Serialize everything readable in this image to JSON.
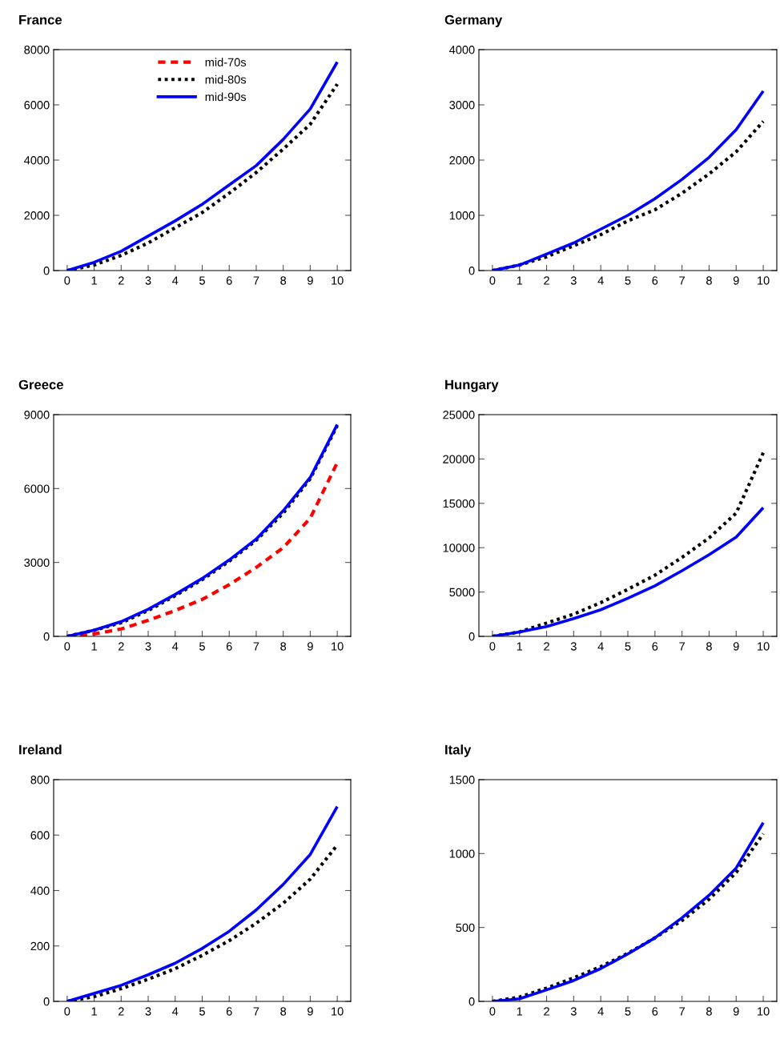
{
  "chart_data": [
    {
      "type": "line",
      "title": "France",
      "x": [
        0,
        1,
        2,
        3,
        4,
        5,
        6,
        7,
        8,
        9,
        10
      ],
      "xlim": [
        -0.5,
        10.5
      ],
      "xticks": [
        0,
        1,
        2,
        3,
        4,
        5,
        6,
        7,
        8,
        9,
        10
      ],
      "ylim": [
        0,
        8000
      ],
      "yticks": [
        0,
        2000,
        4000,
        6000,
        8000
      ],
      "grid": false,
      "legend": "top",
      "series": [
        {
          "name": "mid-70s",
          "color": "#ff0000",
          "line_style": "dashed",
          "values": [
            null,
            null,
            null,
            null,
            null,
            null,
            null,
            null,
            null,
            null,
            null
          ]
        },
        {
          "name": "mid-80s",
          "color": "#000000",
          "line_style": "dotted",
          "values": [
            0,
            200,
            550,
            1000,
            1550,
            2100,
            2800,
            3550,
            4400,
            5300,
            6750
          ]
        },
        {
          "name": "mid-90s",
          "color": "#0000ff",
          "line_style": "solid",
          "values": [
            0,
            300,
            700,
            1250,
            1800,
            2400,
            3100,
            3800,
            4750,
            5850,
            7550
          ]
        }
      ]
    },
    {
      "type": "line",
      "title": "Germany",
      "x": [
        0,
        1,
        2,
        3,
        4,
        5,
        6,
        7,
        8,
        9,
        10
      ],
      "xlim": [
        -0.5,
        10.5
      ],
      "xticks": [
        0,
        1,
        2,
        3,
        4,
        5,
        6,
        7,
        8,
        9,
        10
      ],
      "ylim": [
        0,
        4000
      ],
      "yticks": [
        0,
        1000,
        2000,
        3000,
        4000
      ],
      "grid": false,
      "series": [
        {
          "color": "#000000",
          "line_style": "dotted",
          "values": [
            0,
            100,
            250,
            450,
            650,
            900,
            1100,
            1400,
            1750,
            2150,
            2700
          ]
        },
        {
          "color": "#0000ff",
          "line_style": "solid",
          "values": [
            0,
            100,
            300,
            500,
            750,
            1000,
            1300,
            1650,
            2050,
            2550,
            3250
          ]
        }
      ]
    },
    {
      "type": "line",
      "title": "Greece",
      "x": [
        0,
        1,
        2,
        3,
        4,
        5,
        6,
        7,
        8,
        9,
        10
      ],
      "xlim": [
        -0.5,
        10.5
      ],
      "xticks": [
        0,
        1,
        2,
        3,
        4,
        5,
        6,
        7,
        8,
        9,
        10
      ],
      "ylim": [
        0,
        9000
      ],
      "yticks": [
        0,
        3000,
        6000,
        9000
      ],
      "grid": false,
      "series": [
        {
          "color": "#ff0000",
          "line_style": "dashed",
          "values": [
            0,
            100,
            300,
            650,
            1050,
            1500,
            2100,
            2800,
            3600,
            4800,
            7050
          ]
        },
        {
          "color": "#000000",
          "line_style": "dotted",
          "values": [
            0,
            250,
            550,
            1050,
            1650,
            2300,
            3050,
            3900,
            5000,
            6400,
            8550
          ]
        },
        {
          "color": "#0000ff",
          "line_style": "solid",
          "values": [
            0,
            250,
            600,
            1100,
            1700,
            2350,
            3100,
            3950,
            5100,
            6450,
            8600
          ]
        }
      ]
    },
    {
      "type": "line",
      "title": "Hungary",
      "x": [
        0,
        1,
        2,
        3,
        4,
        5,
        6,
        7,
        8,
        9,
        10
      ],
      "xlim": [
        -0.5,
        10.5
      ],
      "xticks": [
        0,
        1,
        2,
        3,
        4,
        5,
        6,
        7,
        8,
        9,
        10
      ],
      "ylim": [
        0,
        25000
      ],
      "yticks": [
        0,
        5000,
        10000,
        15000,
        20000,
        25000
      ],
      "grid": false,
      "series": [
        {
          "color": "#000000",
          "line_style": "dotted",
          "values": [
            0,
            500,
            1500,
            2500,
            3800,
            5300,
            6900,
            8900,
            11100,
            13900,
            20700
          ]
        },
        {
          "color": "#0000ff",
          "line_style": "solid",
          "values": [
            0,
            500,
            1100,
            2000,
            3000,
            4300,
            5700,
            7400,
            9200,
            11200,
            14500
          ]
        }
      ]
    },
    {
      "type": "line",
      "title": "Ireland",
      "x": [
        0,
        1,
        2,
        3,
        4,
        5,
        6,
        7,
        8,
        9,
        10
      ],
      "xlim": [
        -0.5,
        10.5
      ],
      "xticks": [
        0,
        1,
        2,
        3,
        4,
        5,
        6,
        7,
        8,
        9,
        10
      ],
      "ylim": [
        0,
        800
      ],
      "yticks": [
        0,
        200,
        400,
        600,
        800
      ],
      "grid": false,
      "series": [
        {
          "color": "#000000",
          "line_style": "dotted",
          "values": [
            0,
            17,
            46,
            80,
            118,
            166,
            219,
            282,
            354,
            441,
            564
          ]
        },
        {
          "color": "#0000ff",
          "line_style": "solid",
          "values": [
            0,
            29,
            58,
            96,
            138,
            191,
            253,
            330,
            422,
            530,
            703
          ]
        }
      ]
    },
    {
      "type": "line",
      "title": "Italy",
      "x": [
        0,
        1,
        2,
        3,
        4,
        5,
        6,
        7,
        8,
        9,
        10
      ],
      "xlim": [
        -0.5,
        10.5
      ],
      "xticks": [
        0,
        1,
        2,
        3,
        4,
        5,
        6,
        7,
        8,
        9,
        10
      ],
      "ylim": [
        0,
        1500
      ],
      "yticks": [
        0,
        500,
        1000,
        1500
      ],
      "grid": false,
      "series": [
        {
          "color": "#000000",
          "line_style": "dotted",
          "values": [
            0,
            29,
            90,
            159,
            235,
            325,
            430,
            547,
            691,
            872,
            1134
          ]
        },
        {
          "color": "#0000ff",
          "line_style": "solid",
          "values": [
            0,
            18,
            78,
            141,
            222,
            321,
            430,
            565,
            718,
            902,
            1209
          ]
        }
      ]
    }
  ]
}
